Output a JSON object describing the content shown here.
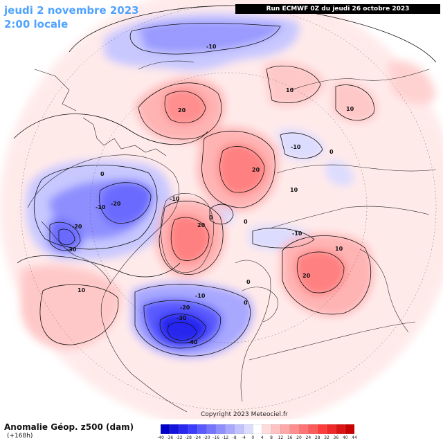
{
  "header": {
    "date_line": "jeudi 2 novembre 2023",
    "time_line": "2:00 locale",
    "run_info": "Run ECMWF 0Z du jeudi 26 octobre 2023"
  },
  "footer": {
    "title": "Anomalie Géop. z500 (dam)",
    "lead": "(+168h)",
    "copyright": "Copyright 2023 Meteociel.fr"
  },
  "colorbar": {
    "labels": [
      "-40",
      "-36",
      "-32",
      "-28",
      "-24",
      "-20",
      "-16",
      "-12",
      "-8",
      "-4",
      "0",
      "4",
      "8",
      "12",
      "16",
      "20",
      "24",
      "28",
      "32",
      "36",
      "40",
      "44"
    ],
    "colors": [
      "#0000c8",
      "#1414dc",
      "#2828f0",
      "#3c3cff",
      "#5a5aff",
      "#7474ff",
      "#8e8eff",
      "#a8a8ff",
      "#c2c2ff",
      "#dcdcff",
      "#ffffff",
      "#ffdcdc",
      "#ffc2c2",
      "#ffa8a8",
      "#ff8e8e",
      "#ff7474",
      "#ff5a5a",
      "#ff3c3c",
      "#f02828",
      "#dc1414",
      "#c80000"
    ]
  },
  "contour_labels": [
    {
      "text": "-10"
    },
    {
      "text": "10"
    },
    {
      "text": "20"
    },
    {
      "text": "10"
    },
    {
      "text": "-10"
    },
    {
      "text": "0"
    },
    {
      "text": "20"
    },
    {
      "text": "10"
    },
    {
      "text": "0"
    },
    {
      "text": "-20"
    },
    {
      "text": "-10"
    },
    {
      "text": "-20"
    },
    {
      "text": "-30"
    },
    {
      "text": "-10"
    },
    {
      "text": "20"
    },
    {
      "text": "0"
    },
    {
      "text": "0"
    },
    {
      "text": "-10"
    },
    {
      "text": "10"
    },
    {
      "text": "20"
    },
    {
      "text": "10"
    },
    {
      "text": "-10"
    },
    {
      "text": "-20"
    },
    {
      "text": "-30"
    },
    {
      "text": "-40"
    },
    {
      "text": "0"
    },
    {
      "text": "0"
    }
  ],
  "colors": {
    "title": "#4fa3ff",
    "positive": "#ff6e6e",
    "negative": "#5a5aff"
  }
}
